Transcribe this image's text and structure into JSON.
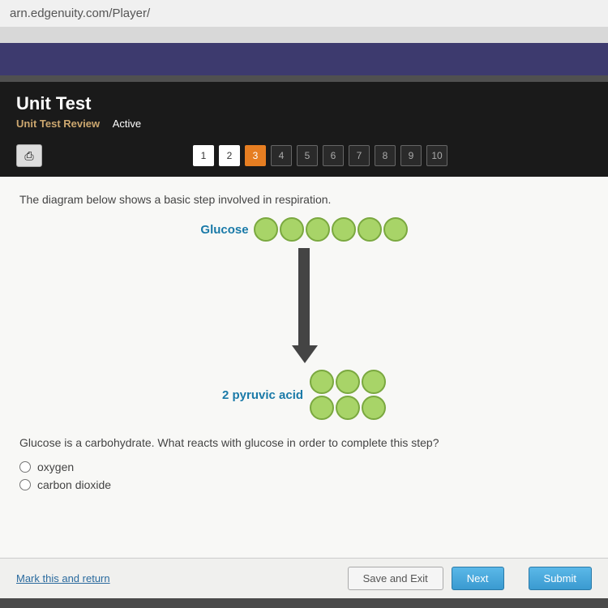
{
  "url": "arn.edgenuity.com/Player/",
  "header": {
    "title": "Unit Test",
    "subtitle": "Unit Test Review",
    "status": "Active"
  },
  "nav": {
    "print_icon": "⎙",
    "questions": [
      {
        "n": "1",
        "state": "done"
      },
      {
        "n": "2",
        "state": "done"
      },
      {
        "n": "3",
        "state": "current"
      },
      {
        "n": "4",
        "state": "future"
      },
      {
        "n": "5",
        "state": "future"
      },
      {
        "n": "6",
        "state": "future"
      },
      {
        "n": "7",
        "state": "future"
      },
      {
        "n": "8",
        "state": "future"
      },
      {
        "n": "9",
        "state": "future"
      },
      {
        "n": "10",
        "state": "future"
      }
    ]
  },
  "content": {
    "intro": "The diagram below shows a basic step involved in respiration.",
    "diagram": {
      "glucose_label": "Glucose",
      "glucose_circles": 6,
      "pyruvic_label": "2 pyruvic acid",
      "pyruvic_circles": 6,
      "circle_fill": "#a8d468",
      "circle_border": "#7aa83f",
      "arrow_color": "#444444",
      "label_color": "#1a7aa8"
    },
    "question": "Glucose is a carbohydrate. What reacts with glucose in order to complete this step?",
    "options": [
      "oxygen",
      "carbon dioxide"
    ]
  },
  "footer": {
    "mark": "Mark this and return",
    "save": "Save and Exit",
    "next": "Next",
    "submit": "Submit"
  }
}
